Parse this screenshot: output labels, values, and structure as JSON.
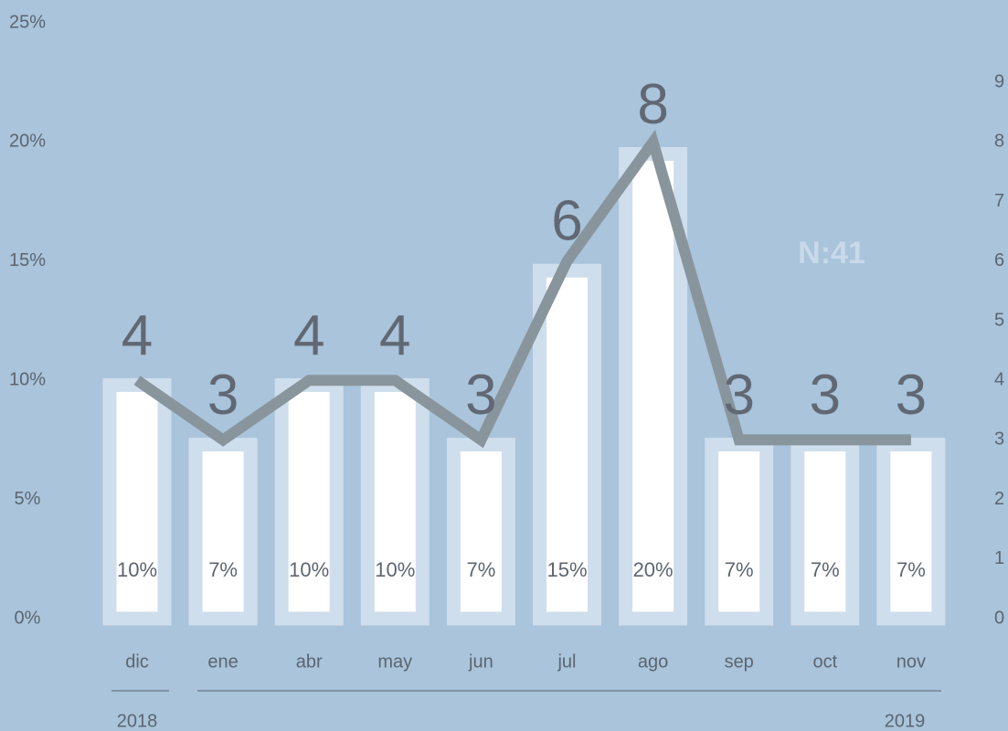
{
  "chart_data": {
    "type": "bar",
    "categories": [
      "dic",
      "ene",
      "abr",
      "may",
      "jun",
      "jul",
      "ago",
      "sep",
      "oct",
      "nov"
    ],
    "group_labels": [
      "2018",
      "2019"
    ],
    "annotations": [
      "N:41"
    ],
    "series": [
      {
        "type": "bar",
        "color": "#ffffff",
        "border_color": "#cfdeec",
        "values": [
          9.8,
          7.3,
          9.8,
          9.8,
          7.3,
          14.6,
          19.5,
          7.3,
          7.3,
          7.3
        ],
        "value_labels": [
          "10%",
          "7%",
          "10%",
          "10%",
          "7%",
          "15%",
          "20%",
          "7%",
          "7%",
          "7%"
        ]
      },
      {
        "type": "line",
        "axis": "y2",
        "color": "#89959c",
        "values": [
          4,
          3,
          4,
          4,
          3,
          6,
          8,
          3,
          3,
          3
        ]
      }
    ],
    "ylim": [
      0,
      25
    ],
    "yticks": [
      {
        "value": 0,
        "label": "0%"
      },
      {
        "value": 5,
        "label": "5%"
      },
      {
        "value": 10,
        "label": "10%"
      },
      {
        "value": 15,
        "label": "15%"
      },
      {
        "value": 20,
        "label": "20%"
      },
      {
        "value": 25,
        "label": "25%"
      }
    ],
    "y2lim": [
      0,
      10
    ],
    "y2ticks": [
      0,
      1,
      2,
      3,
      4,
      5,
      6,
      7,
      8,
      9
    ],
    "grid": false
  }
}
